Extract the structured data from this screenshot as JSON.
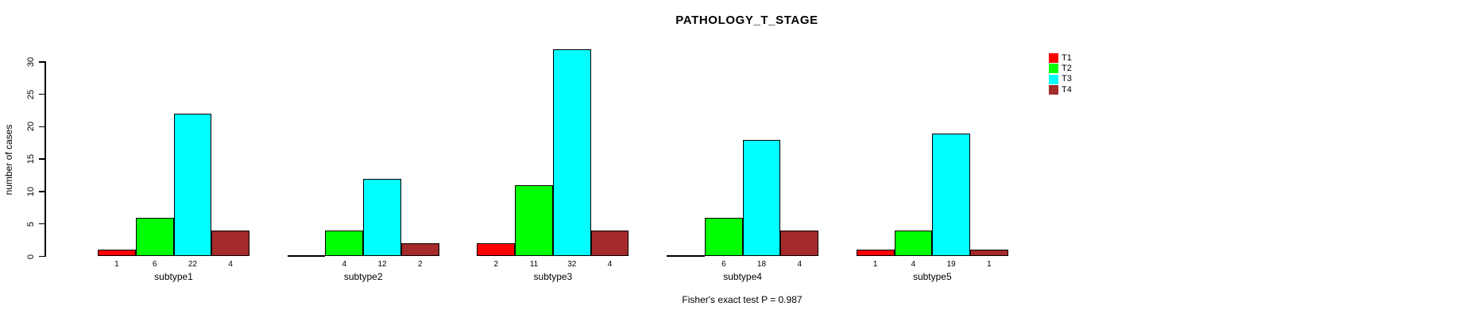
{
  "chart_data": {
    "type": "bar",
    "title": "PATHOLOGY_T_STAGE",
    "ylabel": "number of cases",
    "xlabel": "",
    "ylim": [
      0,
      30
    ],
    "yticks": [
      0,
      5,
      10,
      15,
      20,
      25,
      30
    ],
    "grid": false,
    "legend_position": "right",
    "background_color": "#FFFFFF",
    "axis_color": "#000000",
    "categories": [
      "subtype1",
      "subtype2",
      "subtype3",
      "subtype4",
      "subtype5"
    ],
    "series": [
      {
        "name": "T1",
        "color": "#FF0000",
        "values": [
          1,
          0,
          2,
          0,
          1
        ]
      },
      {
        "name": "T2",
        "color": "#00FF00",
        "values": [
          6,
          4,
          11,
          6,
          4
        ]
      },
      {
        "name": "T3",
        "color": "#00FFFF",
        "values": [
          22,
          12,
          32,
          18,
          19
        ]
      },
      {
        "name": "T4",
        "color": "#A52A2A",
        "values": [
          4,
          2,
          4,
          4,
          1
        ]
      }
    ],
    "bar_value_labels": {
      "subtype1": [
        1,
        6,
        22,
        4
      ],
      "subtype2": [
        null,
        4,
        12,
        2
      ],
      "subtype3": [
        2,
        11,
        32,
        4
      ],
      "subtype4": [
        null,
        6,
        18,
        4
      ],
      "subtype5": [
        1,
        4,
        19,
        1
      ]
    },
    "footnote": "Fisher's exact test P = 0.987"
  }
}
